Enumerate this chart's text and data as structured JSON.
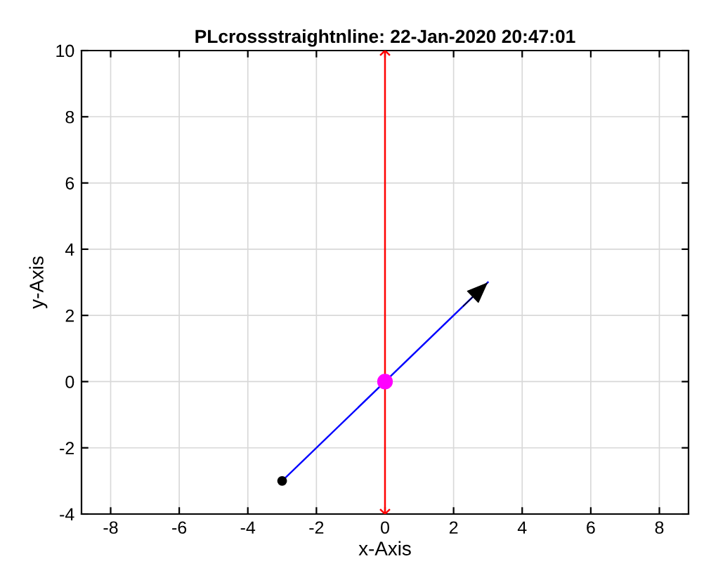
{
  "chart_data": {
    "type": "line",
    "title": "PLcrossstraightnline: 22-Jan-2020 20:47:01",
    "xlabel": "x-Axis",
    "ylabel": "y-Axis",
    "xlim": [
      -8.85,
      8.85
    ],
    "ylim": [
      -4,
      10
    ],
    "xticks": [
      -8,
      -6,
      -4,
      -2,
      0,
      2,
      4,
      6,
      8
    ],
    "yticks": [
      -4,
      -2,
      0,
      2,
      4,
      6,
      8,
      10
    ],
    "grid": true,
    "series": [
      {
        "color": "#ff0000",
        "x": [
          0,
          0
        ],
        "values": [
          -4,
          10
        ],
        "marker": "cross"
      },
      {
        "color": "#0000ff",
        "x": [
          -3,
          3
        ],
        "values": [
          -3,
          3
        ],
        "marker": "none"
      },
      {
        "type": "scatter",
        "color": "#000000",
        "x": [
          -3
        ],
        "values": [
          -3
        ],
        "marker": "circle"
      },
      {
        "type": "scatter",
        "color": "#ff00ff",
        "x": [
          0
        ],
        "values": [
          0
        ],
        "marker": "circle"
      }
    ]
  }
}
